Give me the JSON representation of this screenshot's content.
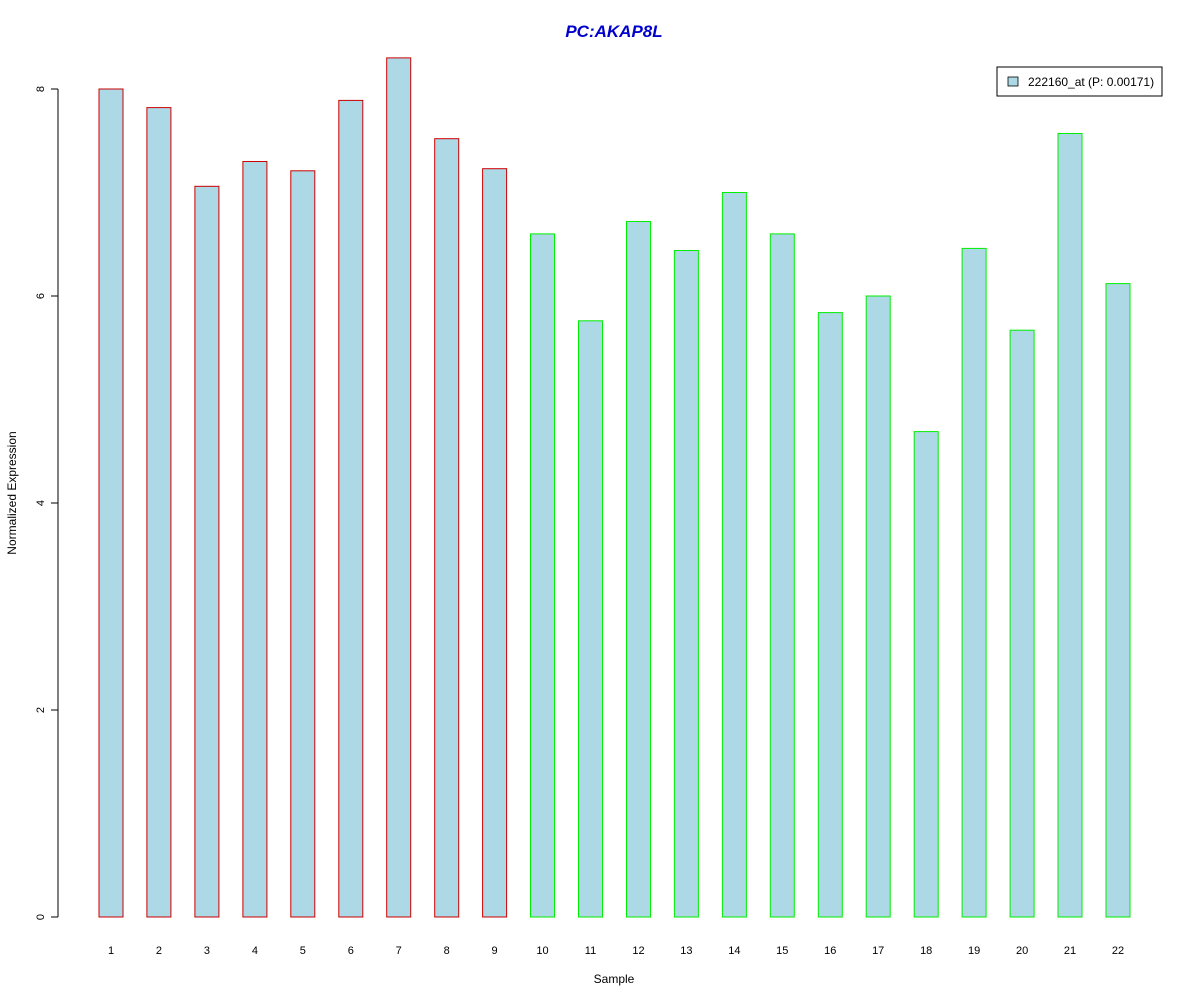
{
  "chart_data": {
    "type": "bar",
    "title": "PC:AKAP8L",
    "xlabel": "Sample",
    "ylabel": "Normalized Expression",
    "categories": [
      "1",
      "2",
      "3",
      "4",
      "5",
      "6",
      "7",
      "8",
      "9",
      "10",
      "11",
      "12",
      "13",
      "14",
      "15",
      "16",
      "17",
      "18",
      "19",
      "20",
      "21",
      "22"
    ],
    "series": [
      {
        "name": "222160_at (P: 0.00171)",
        "values": [
          8.0,
          7.82,
          7.06,
          7.3,
          7.21,
          7.89,
          8.3,
          7.52,
          7.23,
          6.6,
          5.76,
          6.72,
          6.44,
          7.0,
          6.6,
          5.84,
          6.0,
          4.69,
          6.46,
          5.67,
          7.57,
          6.12
        ]
      }
    ],
    "group_border_colors": [
      "#cc0000",
      "#cc0000",
      "#cc0000",
      "#cc0000",
      "#cc0000",
      "#cc0000",
      "#cc0000",
      "#cc0000",
      "#cc0000",
      "#00ee00",
      "#00ee00",
      "#00ee00",
      "#00ee00",
      "#00ee00",
      "#00ee00",
      "#00ee00",
      "#00ee00",
      "#00ee00",
      "#00ee00",
      "#00ee00",
      "#00ee00",
      "#00ee00"
    ],
    "bar_fill": "#add8e6",
    "title_color": "#0000cc",
    "yticks": [
      0,
      2,
      4,
      6,
      8
    ],
    "ylim": [
      0,
      8.4
    ],
    "legend_placement": "top-right",
    "grid": false
  }
}
